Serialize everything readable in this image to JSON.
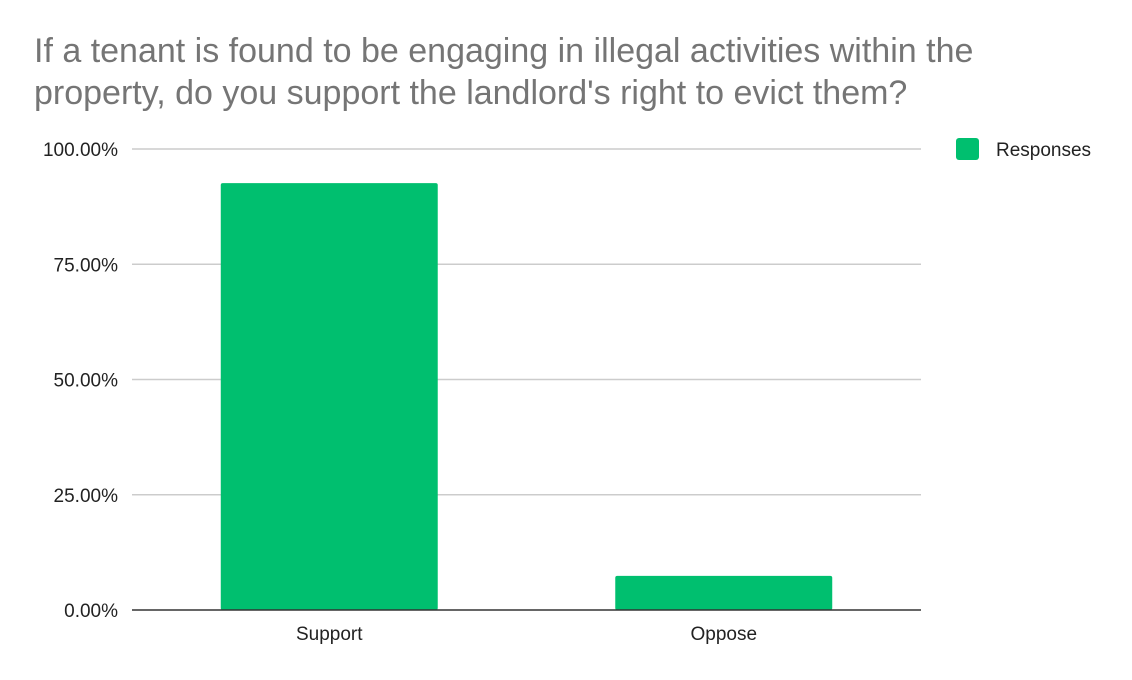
{
  "chart_data": {
    "type": "bar",
    "title": "If a tenant is found to be engaging in illegal activities within the property, do you support the landlord's right to evict them?",
    "categories": [
      "Support",
      "Oppose"
    ],
    "series": [
      {
        "name": "Responses",
        "values": [
          92.6,
          7.4
        ],
        "color": "#00bf6f"
      }
    ],
    "ylim": [
      0,
      100
    ],
    "yticks": [
      0,
      25,
      50,
      75,
      100
    ],
    "ytick_labels": [
      "0.00%",
      "25.00%",
      "50.00%",
      "75.00%",
      "100.00%"
    ],
    "xlabel": "",
    "ylabel": "",
    "grid": true,
    "legend_position": "top-right"
  }
}
